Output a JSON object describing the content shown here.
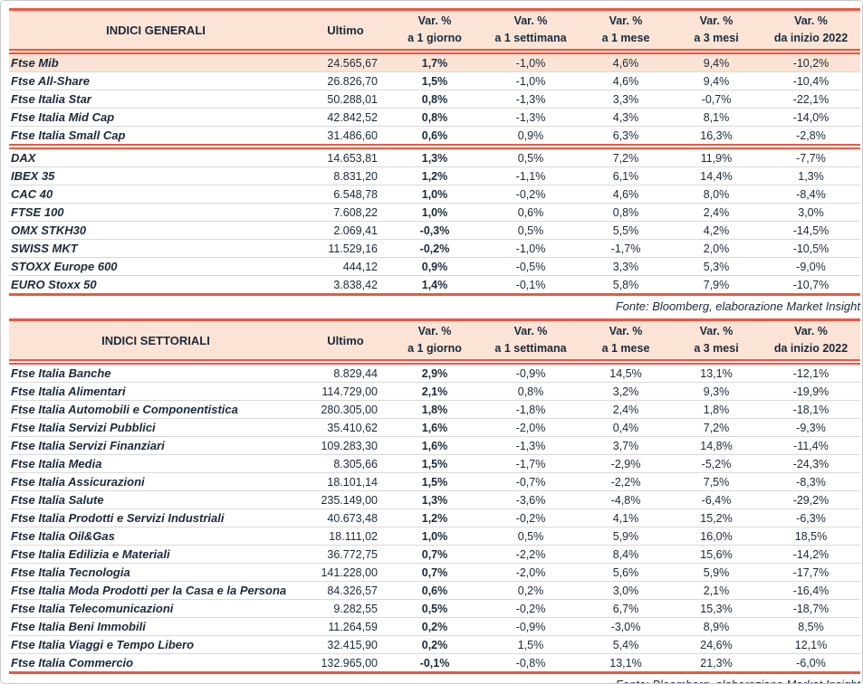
{
  "colors": {
    "red": "#ec5742",
    "peach": "#fbe4d5",
    "ink": "#1b2a3b",
    "sep": "#d9d9d9"
  },
  "shared": {
    "ultimo": "Ultimo",
    "var_label": "Var. %",
    "periods": [
      "a 1 giorno",
      "a 1 settimana",
      "a 1 mese",
      "a 3 mesi",
      "da inizio 2022"
    ],
    "fonte": "Fonte: Bloomberg, elaborazione Market Insight"
  },
  "table1": {
    "title": "INDICI GENERALI",
    "rows": [
      {
        "label": "Ftse Mib",
        "ultimo": "24.565,67",
        "d1": "1,7%",
        "w1": "-1,0%",
        "m1": "4,6%",
        "m3": "9,4%",
        "ytd": "-10,2%",
        "hl": true
      },
      {
        "label": "Ftse All-Share",
        "ultimo": "26.826,70",
        "d1": "1,5%",
        "w1": "-1,0%",
        "m1": "4,6%",
        "m3": "9,4%",
        "ytd": "-10,4%"
      },
      {
        "label": "Ftse Italia Star",
        "ultimo": "50.288,01",
        "d1": "0,8%",
        "w1": "-1,3%",
        "m1": "3,3%",
        "m3": "-0,7%",
        "ytd": "-22,1%"
      },
      {
        "label": "Ftse Italia Mid Cap",
        "ultimo": "42.842,52",
        "d1": "0,8%",
        "w1": "-1,3%",
        "m1": "4,3%",
        "m3": "8,1%",
        "ytd": "-14,0%"
      },
      {
        "label": "Ftse Italia Small Cap",
        "ultimo": "31.486,60",
        "d1": "0,6%",
        "w1": "0,9%",
        "m1": "6,3%",
        "m3": "16,3%",
        "ytd": "-2,8%",
        "end": true
      },
      {
        "label": "DAX",
        "ultimo": "14.653,81",
        "d1": "1,3%",
        "w1": "0,5%",
        "m1": "7,2%",
        "m3": "11,9%",
        "ytd": "-7,7%"
      },
      {
        "label": "IBEX 35",
        "ultimo": "8.831,20",
        "d1": "1,2%",
        "w1": "-1,1%",
        "m1": "6,1%",
        "m3": "14,4%",
        "ytd": "1,3%"
      },
      {
        "label": "CAC 40",
        "ultimo": "6.548,78",
        "d1": "1,0%",
        "w1": "-0,2%",
        "m1": "4,6%",
        "m3": "8,0%",
        "ytd": "-8,4%"
      },
      {
        "label": "FTSE 100",
        "ultimo": "7.608,22",
        "d1": "1,0%",
        "w1": "0,6%",
        "m1": "0,8%",
        "m3": "2,4%",
        "ytd": "3,0%"
      },
      {
        "label": "OMX STKH30",
        "ultimo": "2.069,41",
        "d1": "-0,3%",
        "w1": "0,5%",
        "m1": "5,5%",
        "m3": "4,2%",
        "ytd": "-14,5%"
      },
      {
        "label": "SWISS MKT",
        "ultimo": "11.529,16",
        "d1": "-0,2%",
        "w1": "-1,0%",
        "m1": "-1,7%",
        "m3": "2,0%",
        "ytd": "-10,5%"
      },
      {
        "label": "STOXX Europe 600",
        "ultimo": "444,12",
        "d1": "0,9%",
        "w1": "-0,5%",
        "m1": "3,3%",
        "m3": "5,3%",
        "ytd": "-9,0%"
      },
      {
        "label": "EURO Stoxx 50",
        "ultimo": "3.838,42",
        "d1": "1,4%",
        "w1": "-0,1%",
        "m1": "5,8%",
        "m3": "7,9%",
        "ytd": "-10,7%"
      }
    ]
  },
  "table2": {
    "title": "INDICI SETTORIALI",
    "rows": [
      {
        "label": "Ftse Italia Banche",
        "ultimo": "8.829,44",
        "d1": "2,9%",
        "w1": "-0,9%",
        "m1": "14,5%",
        "m3": "13,1%",
        "ytd": "-12,1%"
      },
      {
        "label": "Ftse Italia Alimentari",
        "ultimo": "114.729,00",
        "d1": "2,1%",
        "w1": "0,8%",
        "m1": "3,2%",
        "m3": "9,3%",
        "ytd": "-19,9%"
      },
      {
        "label": "Ftse Italia Automobili e Componentistica",
        "ultimo": "280.305,00",
        "d1": "1,8%",
        "w1": "-1,8%",
        "m1": "2,4%",
        "m3": "1,8%",
        "ytd": "-18,1%"
      },
      {
        "label": "Ftse Italia Servizi Pubblici",
        "ultimo": "35.410,62",
        "d1": "1,6%",
        "w1": "-2,0%",
        "m1": "0,4%",
        "m3": "7,2%",
        "ytd": "-9,3%"
      },
      {
        "label": "Ftse Italia Servizi Finanziari",
        "ultimo": "109.283,30",
        "d1": "1,6%",
        "w1": "-1,3%",
        "m1": "3,7%",
        "m3": "14,8%",
        "ytd": "-11,4%"
      },
      {
        "label": "Ftse Italia Media",
        "ultimo": "8.305,66",
        "d1": "1,5%",
        "w1": "-1,7%",
        "m1": "-2,9%",
        "m3": "-5,2%",
        "ytd": "-24,3%"
      },
      {
        "label": "Ftse Italia Assicurazioni",
        "ultimo": "18.101,14",
        "d1": "1,5%",
        "w1": "-0,7%",
        "m1": "-2,2%",
        "m3": "7,5%",
        "ytd": "-8,3%"
      },
      {
        "label": "Ftse Italia Salute",
        "ultimo": "235.149,00",
        "d1": "1,3%",
        "w1": "-3,6%",
        "m1": "-4,8%",
        "m3": "-6,4%",
        "ytd": "-29,2%"
      },
      {
        "label": "Ftse Italia Prodotti e Servizi Industriali",
        "ultimo": "40.673,48",
        "d1": "1,2%",
        "w1": "-0,2%",
        "m1": "4,1%",
        "m3": "15,2%",
        "ytd": "-6,3%"
      },
      {
        "label": "Ftse Italia Oil&Gas",
        "ultimo": "18.111,02",
        "d1": "1,0%",
        "w1": "0,5%",
        "m1": "5,9%",
        "m3": "16,0%",
        "ytd": "18,5%"
      },
      {
        "label": "Ftse Italia Edilizia e Materiali",
        "ultimo": "36.772,75",
        "d1": "0,7%",
        "w1": "-2,2%",
        "m1": "8,4%",
        "m3": "15,6%",
        "ytd": "-14,2%"
      },
      {
        "label": "Ftse Italia Tecnologia",
        "ultimo": "141.228,00",
        "d1": "0,7%",
        "w1": "-2,0%",
        "m1": "5,6%",
        "m3": "5,9%",
        "ytd": "-17,7%"
      },
      {
        "label": "Ftse Italia Moda Prodotti per la Casa e la Persona",
        "ultimo": "84.326,57",
        "d1": "0,6%",
        "w1": "0,2%",
        "m1": "3,0%",
        "m3": "2,1%",
        "ytd": "-16,4%"
      },
      {
        "label": "Ftse Italia Telecomunicazioni",
        "ultimo": "9.282,55",
        "d1": "0,5%",
        "w1": "-0,2%",
        "m1": "6,7%",
        "m3": "15,3%",
        "ytd": "-18,7%"
      },
      {
        "label": "Ftse Italia Beni Immobili",
        "ultimo": "11.264,59",
        "d1": "0,2%",
        "w1": "-0,9%",
        "m1": "-3,0%",
        "m3": "8,9%",
        "ytd": "8,5%"
      },
      {
        "label": "Ftse Italia Viaggi e Tempo Libero",
        "ultimo": "32.415,90",
        "d1": "0,2%",
        "w1": "1,5%",
        "m1": "5,4%",
        "m3": "24,6%",
        "ytd": "12,1%"
      },
      {
        "label": "Ftse Italia Commercio",
        "ultimo": "132.965,00",
        "d1": "-0,1%",
        "w1": "-0,8%",
        "m1": "13,1%",
        "m3": "21,3%",
        "ytd": "-6,0%"
      }
    ]
  }
}
